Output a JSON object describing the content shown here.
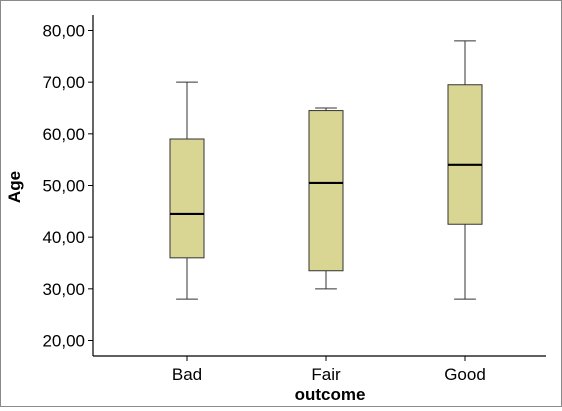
{
  "chart_data": {
    "type": "boxplot",
    "title": "",
    "xlabel": "outcome",
    "ylabel": "Age",
    "ylim": [
      17,
      83
    ],
    "yticks": [
      20,
      30,
      40,
      50,
      60,
      70,
      80
    ],
    "ytick_labels": [
      "20,00",
      "30,00",
      "40,00",
      "50,00",
      "60,00",
      "70,00",
      "80,00"
    ],
    "categories": [
      "Bad",
      "Fair",
      "Good"
    ],
    "boxes": [
      {
        "category": "Bad",
        "min": 28,
        "q1": 36,
        "median": 44.5,
        "q3": 59,
        "max": 70
      },
      {
        "category": "Fair",
        "min": 30,
        "q1": 33.5,
        "median": 50.5,
        "q3": 64.5,
        "max": 65
      },
      {
        "category": "Good",
        "min": 28,
        "q1": 42.5,
        "median": 54,
        "q3": 69.5,
        "max": 78
      }
    ],
    "grid": false,
    "colors": {
      "box_fill": "#d9d592",
      "box_stroke": "#333333",
      "median": "#000000",
      "axis": "#000000"
    }
  }
}
